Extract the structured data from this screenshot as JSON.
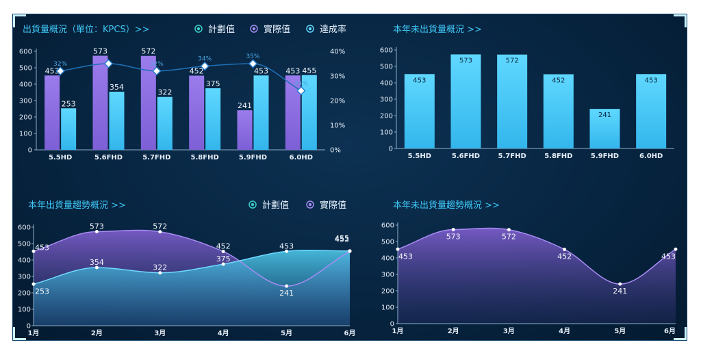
{
  "panels": {
    "shipment_overview": {
      "title": "出貨量概況（單位：KPCS）>>",
      "legend": [
        "計劃值",
        "實際值",
        "達成率"
      ]
    },
    "unshipped_overview": {
      "title": "本年未出貨量概況 >>"
    },
    "shipment_trend": {
      "title": "本年出貨量趨勢概況  >>",
      "legend": [
        "計劃值",
        "實際值"
      ]
    },
    "unshipped_trend": {
      "title": "本年未出貨量趨勢概況  >>"
    }
  },
  "colors": {
    "plan": "#8e6fe0",
    "actual": "#45c8f5",
    "rate": "#1e6fb5",
    "area_purple": "#7a5cc8",
    "area_cyan": "#3fb8dc"
  },
  "chart_data": [
    {
      "id": "shipment_overview",
      "type": "bar",
      "categories": [
        "5.5HD",
        "5.6FHD",
        "5.7FHD",
        "5.8FHD",
        "5.9FHD",
        "6.0HD"
      ],
      "series": [
        {
          "name": "計劃值",
          "values": [
            453,
            573,
            572,
            452,
            241,
            453
          ]
        },
        {
          "name": "實際值",
          "values": [
            253,
            354,
            322,
            375,
            453,
            455
          ]
        },
        {
          "name": "達成率",
          "type": "line",
          "axis": "right",
          "values": [
            32,
            35,
            32,
            34,
            35,
            24
          ],
          "labels": [
            "32%",
            "",
            "32%",
            "34%",
            "35%",
            "24%"
          ]
        }
      ],
      "ylim": [
        0,
        600
      ],
      "yticks": [
        "0",
        "100",
        "200",
        "300",
        "400",
        "500",
        "600"
      ],
      "y2lim": [
        0,
        40
      ],
      "y2ticks": [
        "0%",
        "10%",
        "20%",
        "30%",
        "40%"
      ]
    },
    {
      "id": "unshipped_overview",
      "type": "bar",
      "categories": [
        "5.5HD",
        "5.6FHD",
        "5.7FHD",
        "5.8FHD",
        "5.9FHD",
        "6.0HD"
      ],
      "values": [
        453,
        573,
        572,
        452,
        241,
        453
      ],
      "ylim": [
        0,
        600
      ],
      "yticks": [
        "0",
        "100",
        "200",
        "300",
        "400",
        "500",
        "600"
      ]
    },
    {
      "id": "shipment_trend",
      "type": "area",
      "categories": [
        "1月",
        "2月",
        "3月",
        "4月",
        "5月",
        "6月"
      ],
      "series": [
        {
          "name": "計劃值",
          "values": [
            453,
            573,
            572,
            452,
            241,
            453
          ]
        },
        {
          "name": "實際值",
          "values": [
            253,
            354,
            322,
            375,
            453,
            455
          ]
        }
      ],
      "ylim": [
        0,
        600
      ],
      "yticks": [
        "0",
        "100",
        "200",
        "300",
        "400",
        "500",
        "600"
      ]
    },
    {
      "id": "unshipped_trend",
      "type": "area",
      "categories": [
        "1月",
        "2月",
        "3月",
        "4月",
        "5月",
        "6月"
      ],
      "values": [
        453,
        573,
        572,
        452,
        241,
        453
      ],
      "ylim": [
        0,
        600
      ],
      "yticks": [
        "0",
        "100",
        "200",
        "300",
        "400",
        "500",
        "600"
      ]
    }
  ]
}
